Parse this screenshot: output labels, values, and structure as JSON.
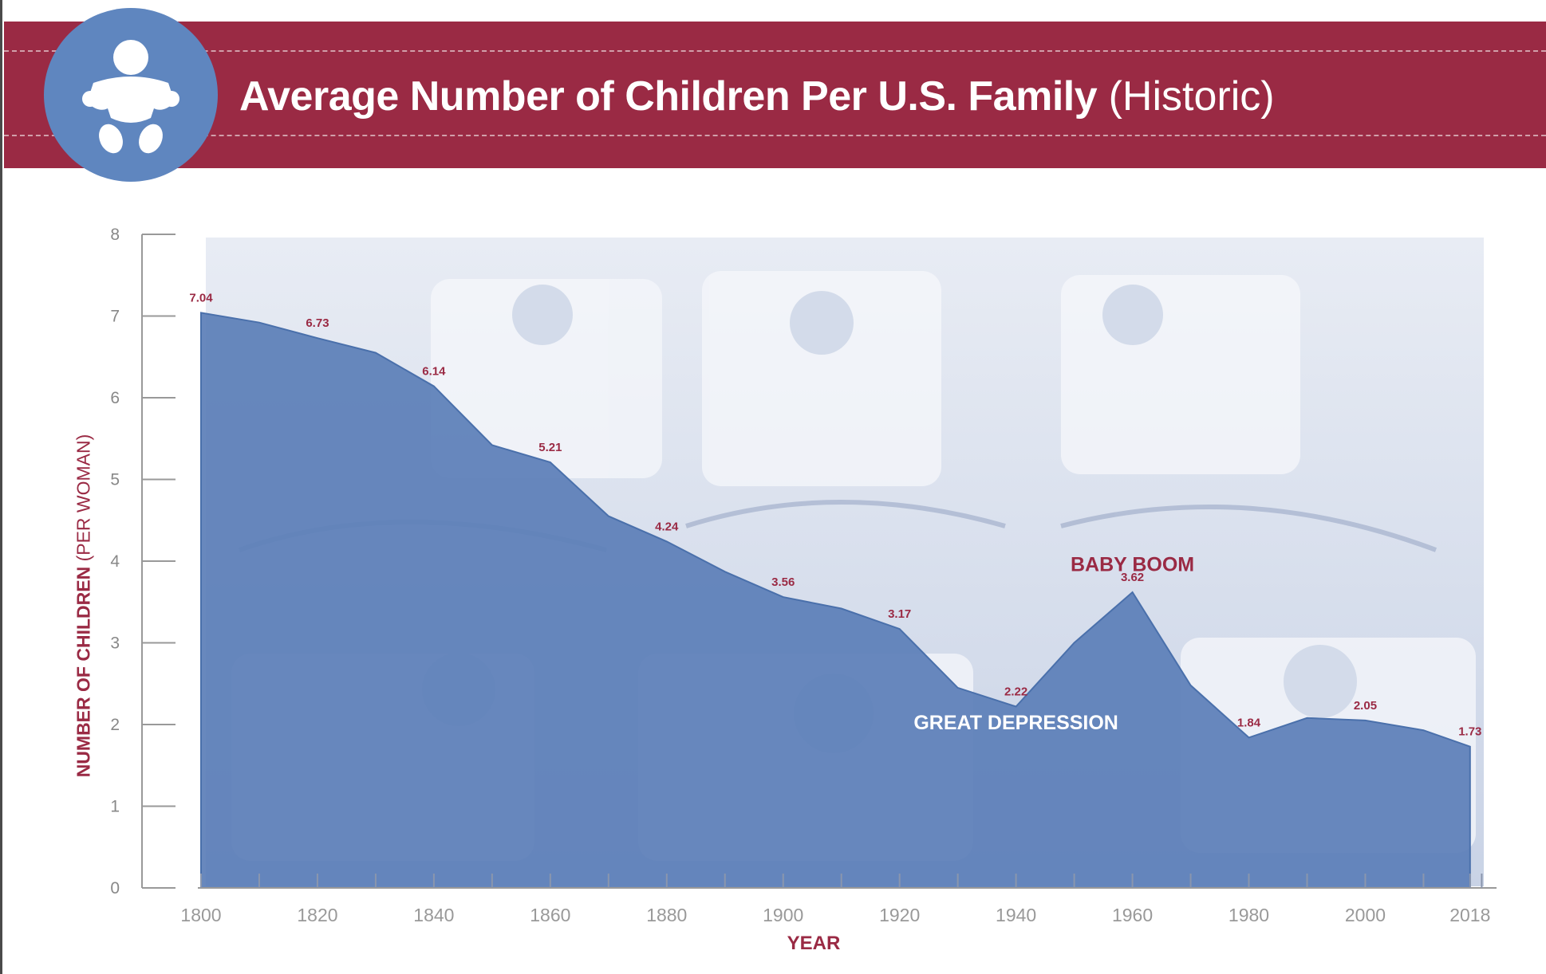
{
  "header": {
    "title_main": "Average Number of Children Per U.S. Family",
    "title_paren": "(Historic)",
    "icon": "baby-icon"
  },
  "colors": {
    "banner": "#9a2a44",
    "badge": "#5f86bf",
    "area": "#5c7fb8",
    "label": "#9a2a44",
    "axis": "#999999"
  },
  "chart_data": {
    "type": "area",
    "title": "Average Number of Children Per U.S. Family (Historic)",
    "ylabel_bold": "NUMBER OF CHILDREN",
    "ylabel_rest": "(PER WOMAN)",
    "xlabel": "YEAR",
    "ylim": [
      0,
      8
    ],
    "yticks": [
      "0",
      "1",
      "2",
      "3",
      "4",
      "5",
      "6",
      "7",
      "8"
    ],
    "xlim": [
      1800,
      2022
    ],
    "xticks": [
      "1800",
      "1820",
      "1840",
      "1860",
      "1880",
      "1900",
      "1920",
      "1940",
      "1960",
      "1980",
      "2000",
      "2018"
    ],
    "series": [
      {
        "name": "Children per woman",
        "x": [
          1800,
          1810,
          1820,
          1830,
          1840,
          1850,
          1860,
          1870,
          1880,
          1890,
          1900,
          1910,
          1920,
          1930,
          1940,
          1950,
          1960,
          1970,
          1980,
          1990,
          2000,
          2010,
          2018
        ],
        "y": [
          7.04,
          6.92,
          6.73,
          6.55,
          6.14,
          5.42,
          5.21,
          4.55,
          4.24,
          3.87,
          3.56,
          3.42,
          3.17,
          2.45,
          2.22,
          3.0,
          3.62,
          2.48,
          1.84,
          2.08,
          2.05,
          1.93,
          1.73
        ]
      }
    ],
    "data_labels": [
      {
        "x": 1800,
        "y": 7.04,
        "text": "7.04"
      },
      {
        "x": 1820,
        "y": 6.73,
        "text": "6.73"
      },
      {
        "x": 1840,
        "y": 6.14,
        "text": "6.14"
      },
      {
        "x": 1860,
        "y": 5.21,
        "text": "5.21"
      },
      {
        "x": 1880,
        "y": 4.24,
        "text": "4.24"
      },
      {
        "x": 1900,
        "y": 3.56,
        "text": "3.56"
      },
      {
        "x": 1920,
        "y": 3.17,
        "text": "3.17"
      },
      {
        "x": 1940,
        "y": 2.22,
        "text": "2.22"
      },
      {
        "x": 1960,
        "y": 3.62,
        "text": "3.62"
      },
      {
        "x": 1980,
        "y": 1.84,
        "text": "1.84"
      },
      {
        "x": 2000,
        "y": 2.05,
        "text": "2.05"
      },
      {
        "x": 2018,
        "y": 1.73,
        "text": "1.73"
      }
    ],
    "annotations": [
      {
        "text": "BABY BOOM",
        "x": 1960,
        "y": 3.88,
        "style": "red"
      },
      {
        "text": "GREAT DEPRESSION",
        "x": 1940,
        "y": 1.94,
        "style": "white"
      }
    ]
  }
}
